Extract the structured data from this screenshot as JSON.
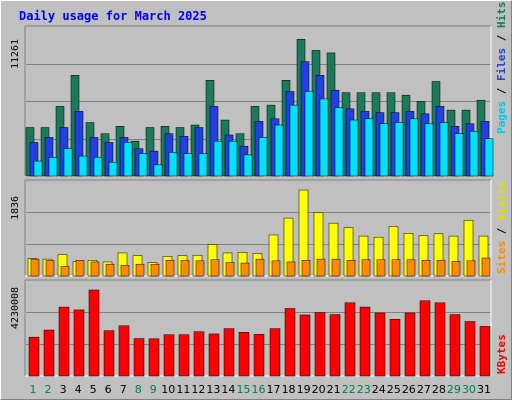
{
  "chart_data": {
    "type": "bar",
    "title": "Daily usage for March 2025",
    "categories": [
      "1",
      "2",
      "3",
      "4",
      "5",
      "6",
      "7",
      "8",
      "9",
      "10",
      "11",
      "12",
      "13",
      "14",
      "15",
      "16",
      "17",
      "18",
      "19",
      "20",
      "21",
      "22",
      "23",
      "24",
      "25",
      "26",
      "27",
      "28",
      "29",
      "30",
      "31"
    ],
    "weekend_days": [
      "1",
      "2",
      "8",
      "9",
      "15",
      "16",
      "22",
      "23",
      "29",
      "30"
    ],
    "panels": [
      {
        "id": "hits-files-pages",
        "axis_max_label": "11261",
        "ylim": [
          0,
          11261
        ],
        "legend": [
          "Pages",
          "Files",
          "Hits"
        ],
        "series": [
          {
            "name": "Hits",
            "color": "#1a7a5a",
            "values": [
              3900,
              3900,
              5600,
              8100,
              4300,
              3400,
              4000,
              2800,
              3900,
              4000,
              3900,
              4100,
              7700,
              4500,
              3400,
              5600,
              5700,
              7700,
              11000,
              10100,
              9900,
              6700,
              6700,
              6700,
              6700,
              6500,
              6000,
              7600,
              5300,
              5300,
              6100
            ]
          },
          {
            "name": "Files",
            "color": "#2040e0",
            "values": [
              2700,
              3100,
              3900,
              5200,
              3100,
              2700,
              3100,
              2200,
              2000,
              3400,
              3200,
              3900,
              5600,
              3300,
              2400,
              4400,
              4600,
              6800,
              9200,
              8100,
              6900,
              5400,
              5200,
              5100,
              5100,
              5200,
              5000,
              5600,
              4000,
              4200,
              4400
            ]
          },
          {
            "name": "Pages",
            "color": "#00e0ff",
            "values": [
              1200,
              1500,
              2200,
              1600,
              1500,
              1100,
              2700,
              1800,
              900,
              1900,
              1800,
              1800,
              2800,
              2800,
              1700,
              3100,
              4100,
              5700,
              6800,
              6200,
              5500,
              4500,
              4600,
              4200,
              4300,
              4600,
              4200,
              4300,
              3400,
              3600,
              3000
            ]
          }
        ]
      },
      {
        "id": "visits-sites",
        "axis_max_label": "1836",
        "ylim": [
          0,
          1836
        ],
        "legend": [
          "Sites",
          "Visits"
        ],
        "series": [
          {
            "name": "Visits",
            "color": "#ffff00",
            "values": [
              372,
              360,
              456,
              312,
              336,
              300,
              492,
              432,
              288,
              420,
              432,
              444,
              672,
              492,
              504,
              480,
              876,
              1236,
              1836,
              1356,
              1128,
              1032,
              852,
              828,
              1056,
              912,
              864,
              900,
              852,
              1188,
              852
            ]
          },
          {
            "name": "Sites",
            "color": "#ff8c00",
            "values": [
              360,
              330,
              204,
              336,
              300,
              252,
              228,
              252,
              252,
              336,
              330,
              324,
              348,
              288,
              276,
              360,
              324,
              300,
              336,
              360,
              360,
              336,
              348,
              348,
              348,
              348,
              336,
              336,
              312,
              324,
              384
            ]
          }
        ]
      },
      {
        "id": "kbytes",
        "axis_max_label": "4230008",
        "ylim": [
          0,
          4230008
        ],
        "legend": [
          "KBytes"
        ],
        "series": [
          {
            "name": "KBytes",
            "color": "#ff0000",
            "values": [
              1910000,
              2260000,
              3390000,
              3250000,
              4230000,
              2230000,
              2470000,
              1840000,
              1830000,
              2030000,
              2030000,
              2180000,
              2070000,
              2330000,
              2150000,
              2050000,
              2330000,
              3320000,
              3000000,
              3120000,
              3020000,
              3600000,
              3390000,
              3100000,
              2790000,
              3100000,
              3700000,
              3600000,
              3020000,
              2680000,
              2440000
            ]
          }
        ]
      }
    ]
  }
}
